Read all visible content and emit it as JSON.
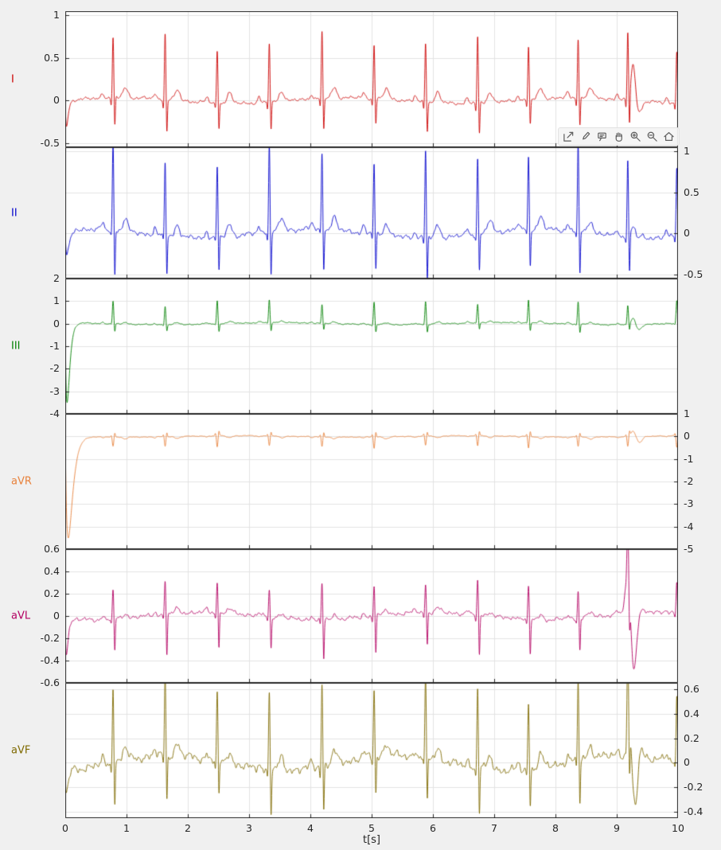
{
  "figure": {
    "background": "#f0f0f0",
    "xlabel": "t[s]",
    "xlim": [
      0,
      10
    ],
    "xticks": [
      0,
      1,
      2,
      3,
      4,
      5,
      6,
      7,
      8,
      9,
      10
    ],
    "grid": true,
    "legend": "none"
  },
  "axes_toolbar": {
    "icons": [
      "export-icon",
      "brush-icon",
      "datatip-icon",
      "pan-icon",
      "zoom-in-icon",
      "zoom-out-icon",
      "restore-view-icon"
    ]
  },
  "chart_data": [
    {
      "type": "line",
      "name": "I",
      "color": "#cc0000",
      "ylim": [
        -0.55,
        1.05
      ],
      "yticks": [
        1,
        0.5,
        0,
        -0.5
      ],
      "ytick_side": "left",
      "description": "ECG lead I, 10 s strip, ~71 bpm",
      "beat_times": [
        0.78,
        1.63,
        2.48,
        3.33,
        4.19,
        5.04,
        5.88,
        6.73,
        7.56,
        8.37,
        9.18,
        9.98
      ],
      "p_amp": 0.06,
      "q_amp": -0.1,
      "r_amp": 0.7,
      "s_amp": -0.35,
      "t_amp": 0.12,
      "noise_amp": 0.022,
      "startup_amp": -0.3,
      "startup_tau": 0.02,
      "artifact": {
        "time": 9.27,
        "pos": 0.45,
        "neg": -0.25
      }
    },
    {
      "type": "line",
      "name": "II",
      "color": "#0000cc",
      "ylim": [
        -0.55,
        1.05
      ],
      "yticks": [
        1,
        0.5,
        0,
        -0.5
      ],
      "ytick_side": "right",
      "description": "ECG lead II",
      "beat_times": [
        0.78,
        1.63,
        2.48,
        3.33,
        4.19,
        5.04,
        5.88,
        6.73,
        7.56,
        8.37,
        9.18,
        9.98
      ],
      "p_amp": 0.08,
      "q_amp": -0.08,
      "r_amp": 0.95,
      "s_amp": -0.5,
      "t_amp": 0.15,
      "noise_amp": 0.035,
      "startup_amp": -0.3,
      "startup_tau": 0.03,
      "artifact": {
        "time": 9.27,
        "pos": 0.15,
        "neg": -0.15
      }
    },
    {
      "type": "line",
      "name": "III",
      "color": "#008000",
      "ylim": [
        -4,
        2
      ],
      "yticks": [
        2,
        1,
        0,
        -1,
        -2,
        -3,
        -4
      ],
      "ytick_side": "left",
      "description": "ECG lead III with filter start-up transient to -3.5 at t=0",
      "beat_times": [
        0.78,
        1.63,
        2.48,
        3.33,
        4.19,
        5.04,
        5.88,
        6.73,
        7.56,
        8.37,
        9.18,
        9.98
      ],
      "p_amp": 0.05,
      "q_amp": -0.05,
      "r_amp": 0.95,
      "s_amp": -0.35,
      "t_amp": 0.08,
      "noise_amp": 0.03,
      "startup_amp": -3.55,
      "startup_tau": 0.03,
      "artifact": {
        "time": 9.27,
        "pos": 0.3,
        "neg": -0.3
      }
    },
    {
      "type": "line",
      "name": "aVR",
      "color": "#e8823c",
      "ylim": [
        -5,
        1
      ],
      "yticks": [
        1,
        0,
        -1,
        -2,
        -3,
        -4,
        -5
      ],
      "ytick_side": "right",
      "description": "ECG lead aVR with start-up transient to -4.5 at t=0",
      "beat_times": [
        0.78,
        1.63,
        2.48,
        3.33,
        4.19,
        5.04,
        5.88,
        6.73,
        7.56,
        8.37,
        9.18,
        9.98
      ],
      "p_amp": -0.04,
      "q_amp": 0.1,
      "r_amp": -0.45,
      "s_amp": 0.2,
      "t_amp": -0.08,
      "noise_amp": 0.02,
      "startup_amp": -4.5,
      "startup_tau": 0.05,
      "artifact": {
        "time": 9.27,
        "pos": 0.25,
        "neg": -0.2
      }
    },
    {
      "type": "line",
      "name": "aVL",
      "color": "#b30062",
      "ylim": [
        -0.6,
        0.6
      ],
      "yticks": [
        0.6,
        0.4,
        0.2,
        0,
        -0.2,
        -0.4,
        -0.6
      ],
      "ytick_side": "left",
      "description": "ECG lead aVL, large artifact +0.5/-0.5 near t=9.2 s",
      "beat_times": [
        0.78,
        1.63,
        2.48,
        3.33,
        4.19,
        5.04,
        5.88,
        6.73,
        7.56,
        8.37,
        9.18,
        9.98
      ],
      "p_amp": 0.03,
      "q_amp": -0.05,
      "r_amp": 0.28,
      "s_amp": -0.33,
      "t_amp": 0.04,
      "noise_amp": 0.022,
      "startup_amp": -0.3,
      "startup_tau": 0.02,
      "artifact": {
        "time": 9.18,
        "pos": 0.5,
        "neg": -0.5
      }
    },
    {
      "type": "line",
      "name": "aVF",
      "color": "#7f6a00",
      "ylim": [
        -0.45,
        0.65
      ],
      "yticks": [
        0.6,
        0.4,
        0.2,
        0,
        -0.2,
        -0.4
      ],
      "ytick_side": "right",
      "description": "ECG lead aVF, deep dip to -0.45 near t=9.25 s",
      "beat_times": [
        0.78,
        1.63,
        2.48,
        3.33,
        4.19,
        5.04,
        5.88,
        6.73,
        7.56,
        8.37,
        9.18,
        9.98
      ],
      "p_amp": 0.05,
      "q_amp": -0.08,
      "r_amp": 0.62,
      "s_amp": -0.35,
      "t_amp": 0.1,
      "noise_amp": 0.04,
      "startup_amp": -0.2,
      "startup_tau": 0.02,
      "artifact": {
        "time": 9.2,
        "pos": 0.28,
        "neg": -0.42
      }
    }
  ]
}
